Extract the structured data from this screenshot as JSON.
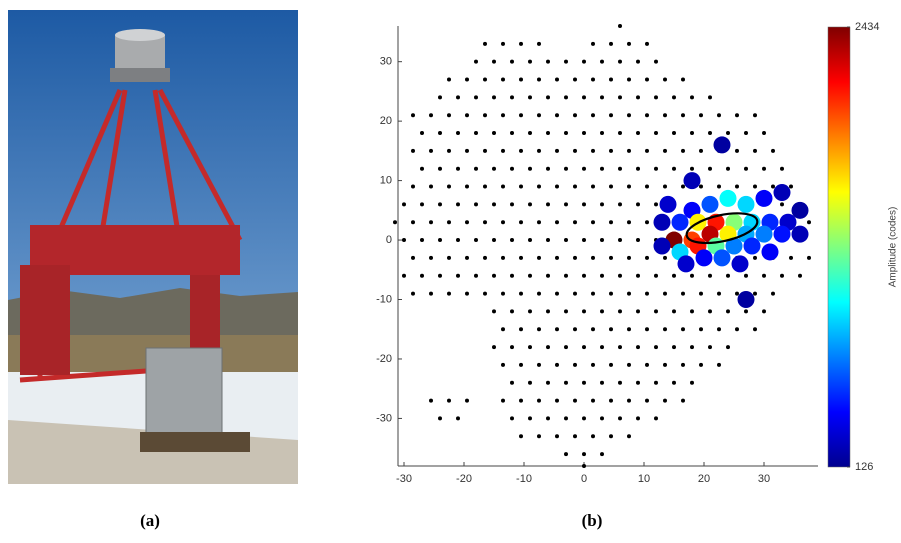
{
  "figure": {
    "labels": [
      "(a)",
      "(b)"
    ]
  },
  "chart_data": {
    "type": "scatter",
    "xlim": [
      -31,
      39
    ],
    "ylim": [
      -38,
      36
    ],
    "xticks": [
      -30,
      -20,
      -10,
      0,
      10,
      20,
      30
    ],
    "yticks": [
      -30,
      -20,
      -10,
      0,
      10,
      20,
      30
    ],
    "pixel_color": "#000000",
    "pixel_rows": [
      {
        "y": 36,
        "x": [
          6
        ]
      },
      {
        "y": 33,
        "x": [
          -16.5,
          -13.5,
          -10.5,
          -7.5,
          1.5,
          4.5,
          7.5,
          10.5
        ]
      },
      {
        "y": 30,
        "x": [
          -18,
          -15,
          -12,
          -9,
          -6,
          -3,
          0,
          3,
          6,
          9,
          12
        ]
      },
      {
        "y": 27,
        "x": [
          -22.5,
          -19.5,
          -16.5,
          -13.5,
          -10.5,
          -7.5,
          -4.5,
          -1.5,
          1.5,
          4.5,
          7.5,
          10.5,
          13.5,
          16.5
        ]
      },
      {
        "y": 24,
        "x": [
          -24,
          -21,
          -18,
          -15,
          -12,
          -9,
          -6,
          -3,
          0,
          3,
          6,
          9,
          12,
          15,
          18,
          21
        ]
      },
      {
        "y": 21,
        "x": [
          -28.5,
          -25.5,
          -22.5,
          -19.5,
          -16.5,
          -13.5,
          -10.5,
          -7.5,
          -4.5,
          -1.5,
          1.5,
          4.5,
          7.5,
          10.5,
          13.5,
          16.5,
          19.5,
          22.5,
          25.5,
          28.5
        ]
      },
      {
        "y": 18,
        "x": [
          -27,
          -24,
          -21,
          -18,
          -15,
          -12,
          -9,
          -6,
          -3,
          0,
          3,
          6,
          9,
          12,
          15,
          18,
          21,
          24,
          27,
          30
        ]
      },
      {
        "y": 15,
        "x": [
          -28.5,
          -25.5,
          -22.5,
          -19.5,
          -16.5,
          -13.5,
          -10.5,
          -7.5,
          -4.5,
          -1.5,
          1.5,
          4.5,
          7.5,
          10.5,
          13.5,
          16.5,
          19.5,
          22.5,
          25.5,
          28.5,
          31.5
        ]
      },
      {
        "y": 12,
        "x": [
          -27,
          -24,
          -21,
          -18,
          -15,
          -12,
          -9,
          -6,
          -3,
          0,
          3,
          6,
          9,
          12,
          15,
          18,
          21,
          24,
          27,
          30,
          33
        ]
      },
      {
        "y": 9,
        "x": [
          -28.5,
          -25.5,
          -22.5,
          -19.5,
          -16.5,
          -13.5,
          -10.5,
          -7.5,
          -4.5,
          -1.5,
          1.5,
          4.5,
          7.5,
          10.5,
          13.5,
          16.5,
          19.5,
          22.5,
          25.5,
          28.5,
          31.5,
          34.5
        ]
      },
      {
        "y": 6,
        "x": [
          -30,
          -27,
          -24,
          -21,
          -18,
          -15,
          -12,
          -9,
          -6,
          -3,
          0,
          3,
          6,
          9,
          12,
          15,
          18,
          21,
          24,
          27,
          30,
          33,
          36
        ]
      },
      {
        "y": 3,
        "x": [
          -31.5,
          -28.5,
          -25.5,
          -22.5,
          -19.5,
          -16.5,
          -13.5,
          -10.5,
          -7.5,
          -4.5,
          -1.5,
          1.5,
          4.5,
          7.5,
          10.5,
          13.5,
          16.5,
          19.5,
          22.5,
          25.5,
          28.5,
          31.5,
          34.5,
          37.5
        ]
      },
      {
        "y": 0,
        "x": [
          -30,
          -27,
          -24,
          -21,
          -18,
          -15,
          -12,
          -9,
          -6,
          -3,
          0,
          3,
          6,
          9,
          12,
          15,
          18,
          21,
          24,
          27,
          30,
          33,
          36
        ]
      },
      {
        "y": -3,
        "x": [
          -28.5,
          -25.5,
          -22.5,
          -19.5,
          -16.5,
          -13.5,
          -10.5,
          -7.5,
          -4.5,
          -1.5,
          1.5,
          4.5,
          7.5,
          10.5,
          13.5,
          16.5,
          19.5,
          22.5,
          25.5,
          28.5,
          31.5,
          34.5,
          37.5
        ]
      },
      {
        "y": -6,
        "x": [
          -30,
          -27,
          -24,
          -21,
          -18,
          -15,
          -12,
          -9,
          -6,
          -3,
          0,
          3,
          6,
          9,
          12,
          15,
          18,
          21,
          24,
          27,
          30,
          33,
          36
        ]
      },
      {
        "y": -9,
        "x": [
          -28.5,
          -25.5,
          -22.5,
          -19.5,
          -16.5,
          -13.5,
          -10.5,
          -7.5,
          -4.5,
          -1.5,
          1.5,
          4.5,
          7.5,
          10.5,
          13.5,
          16.5,
          19.5,
          22.5,
          25.5,
          28.5,
          31.5
        ]
      },
      {
        "y": -12,
        "x": [
          -15,
          -12,
          -9,
          -6,
          -3,
          0,
          3,
          6,
          9,
          12,
          15,
          18,
          21,
          24,
          27,
          30
        ]
      },
      {
        "y": -15,
        "x": [
          -13.5,
          -10.5,
          -7.5,
          -4.5,
          -1.5,
          1.5,
          4.5,
          7.5,
          10.5,
          13.5,
          16.5,
          19.5,
          22.5,
          25.5,
          28.5
        ]
      },
      {
        "y": -18,
        "x": [
          -15,
          -12,
          -9,
          -6,
          -3,
          0,
          3,
          6,
          9,
          12,
          15,
          18,
          21,
          24
        ]
      },
      {
        "y": -21,
        "x": [
          -13.5,
          -10.5,
          -7.5,
          -4.5,
          -1.5,
          1.5,
          4.5,
          7.5,
          10.5,
          13.5,
          16.5,
          19.5,
          22.5
        ]
      },
      {
        "y": -24,
        "x": [
          -12,
          -9,
          -6,
          -3,
          0,
          3,
          6,
          9,
          12,
          15,
          18
        ]
      },
      {
        "y": -27,
        "x": [
          -25.5,
          -22.5,
          -19.5,
          -13.5,
          -10.5,
          -7.5,
          -4.5,
          -1.5,
          1.5,
          4.5,
          7.5,
          10.5,
          13.5,
          16.5
        ]
      },
      {
        "y": -30,
        "x": [
          -24,
          -21,
          -12,
          -9,
          -6,
          -3,
          0,
          3,
          6,
          9,
          12
        ]
      },
      {
        "y": -33,
        "x": [
          -10.5,
          -7.5,
          -4.5,
          -1.5,
          1.5,
          4.5,
          7.5
        ]
      },
      {
        "y": -36,
        "x": [
          -3,
          0,
          3
        ]
      },
      {
        "y": -38,
        "x": [
          0
        ]
      }
    ],
    "hits": {
      "x": [
        23,
        18,
        14,
        18,
        21,
        24,
        27,
        30,
        33,
        13,
        16,
        19,
        22,
        25,
        28,
        31,
        34,
        36,
        15,
        18,
        21,
        24,
        27,
        30,
        33,
        36,
        13,
        16,
        19,
        22,
        25,
        28,
        31,
        17,
        20,
        23,
        26,
        27
      ],
      "y": [
        16,
        10,
        6,
        5,
        6,
        7,
        6,
        7,
        8,
        3,
        3,
        3,
        3,
        3,
        3,
        3,
        3,
        5,
        0,
        0,
        1,
        1,
        1,
        1,
        1,
        1,
        -1,
        -2,
        -1,
        -1,
        -1,
        -1,
        -2,
        -4,
        -3,
        -3,
        -4,
        -10
      ],
      "amplitude": [
        200,
        250,
        300,
        400,
        600,
        1000,
        900,
        400,
        250,
        250,
        500,
        1600,
        2100,
        1300,
        900,
        500,
        300,
        200,
        2434,
        2000,
        2300,
        1600,
        800,
        700,
        450,
        250,
        250,
        900,
        2100,
        1200,
        700,
        500,
        400,
        300,
        400,
        600,
        300,
        200
      ]
    },
    "ellipse": {
      "cx": 23,
      "cy": 2,
      "rx": 6,
      "ry": 2.2,
      "angle": 12
    },
    "colorbar": {
      "label": "Amplitude (codes)",
      "lim": [
        126,
        2434
      ],
      "ticks": [
        126,
        2434
      ],
      "colormap": "jet"
    }
  }
}
